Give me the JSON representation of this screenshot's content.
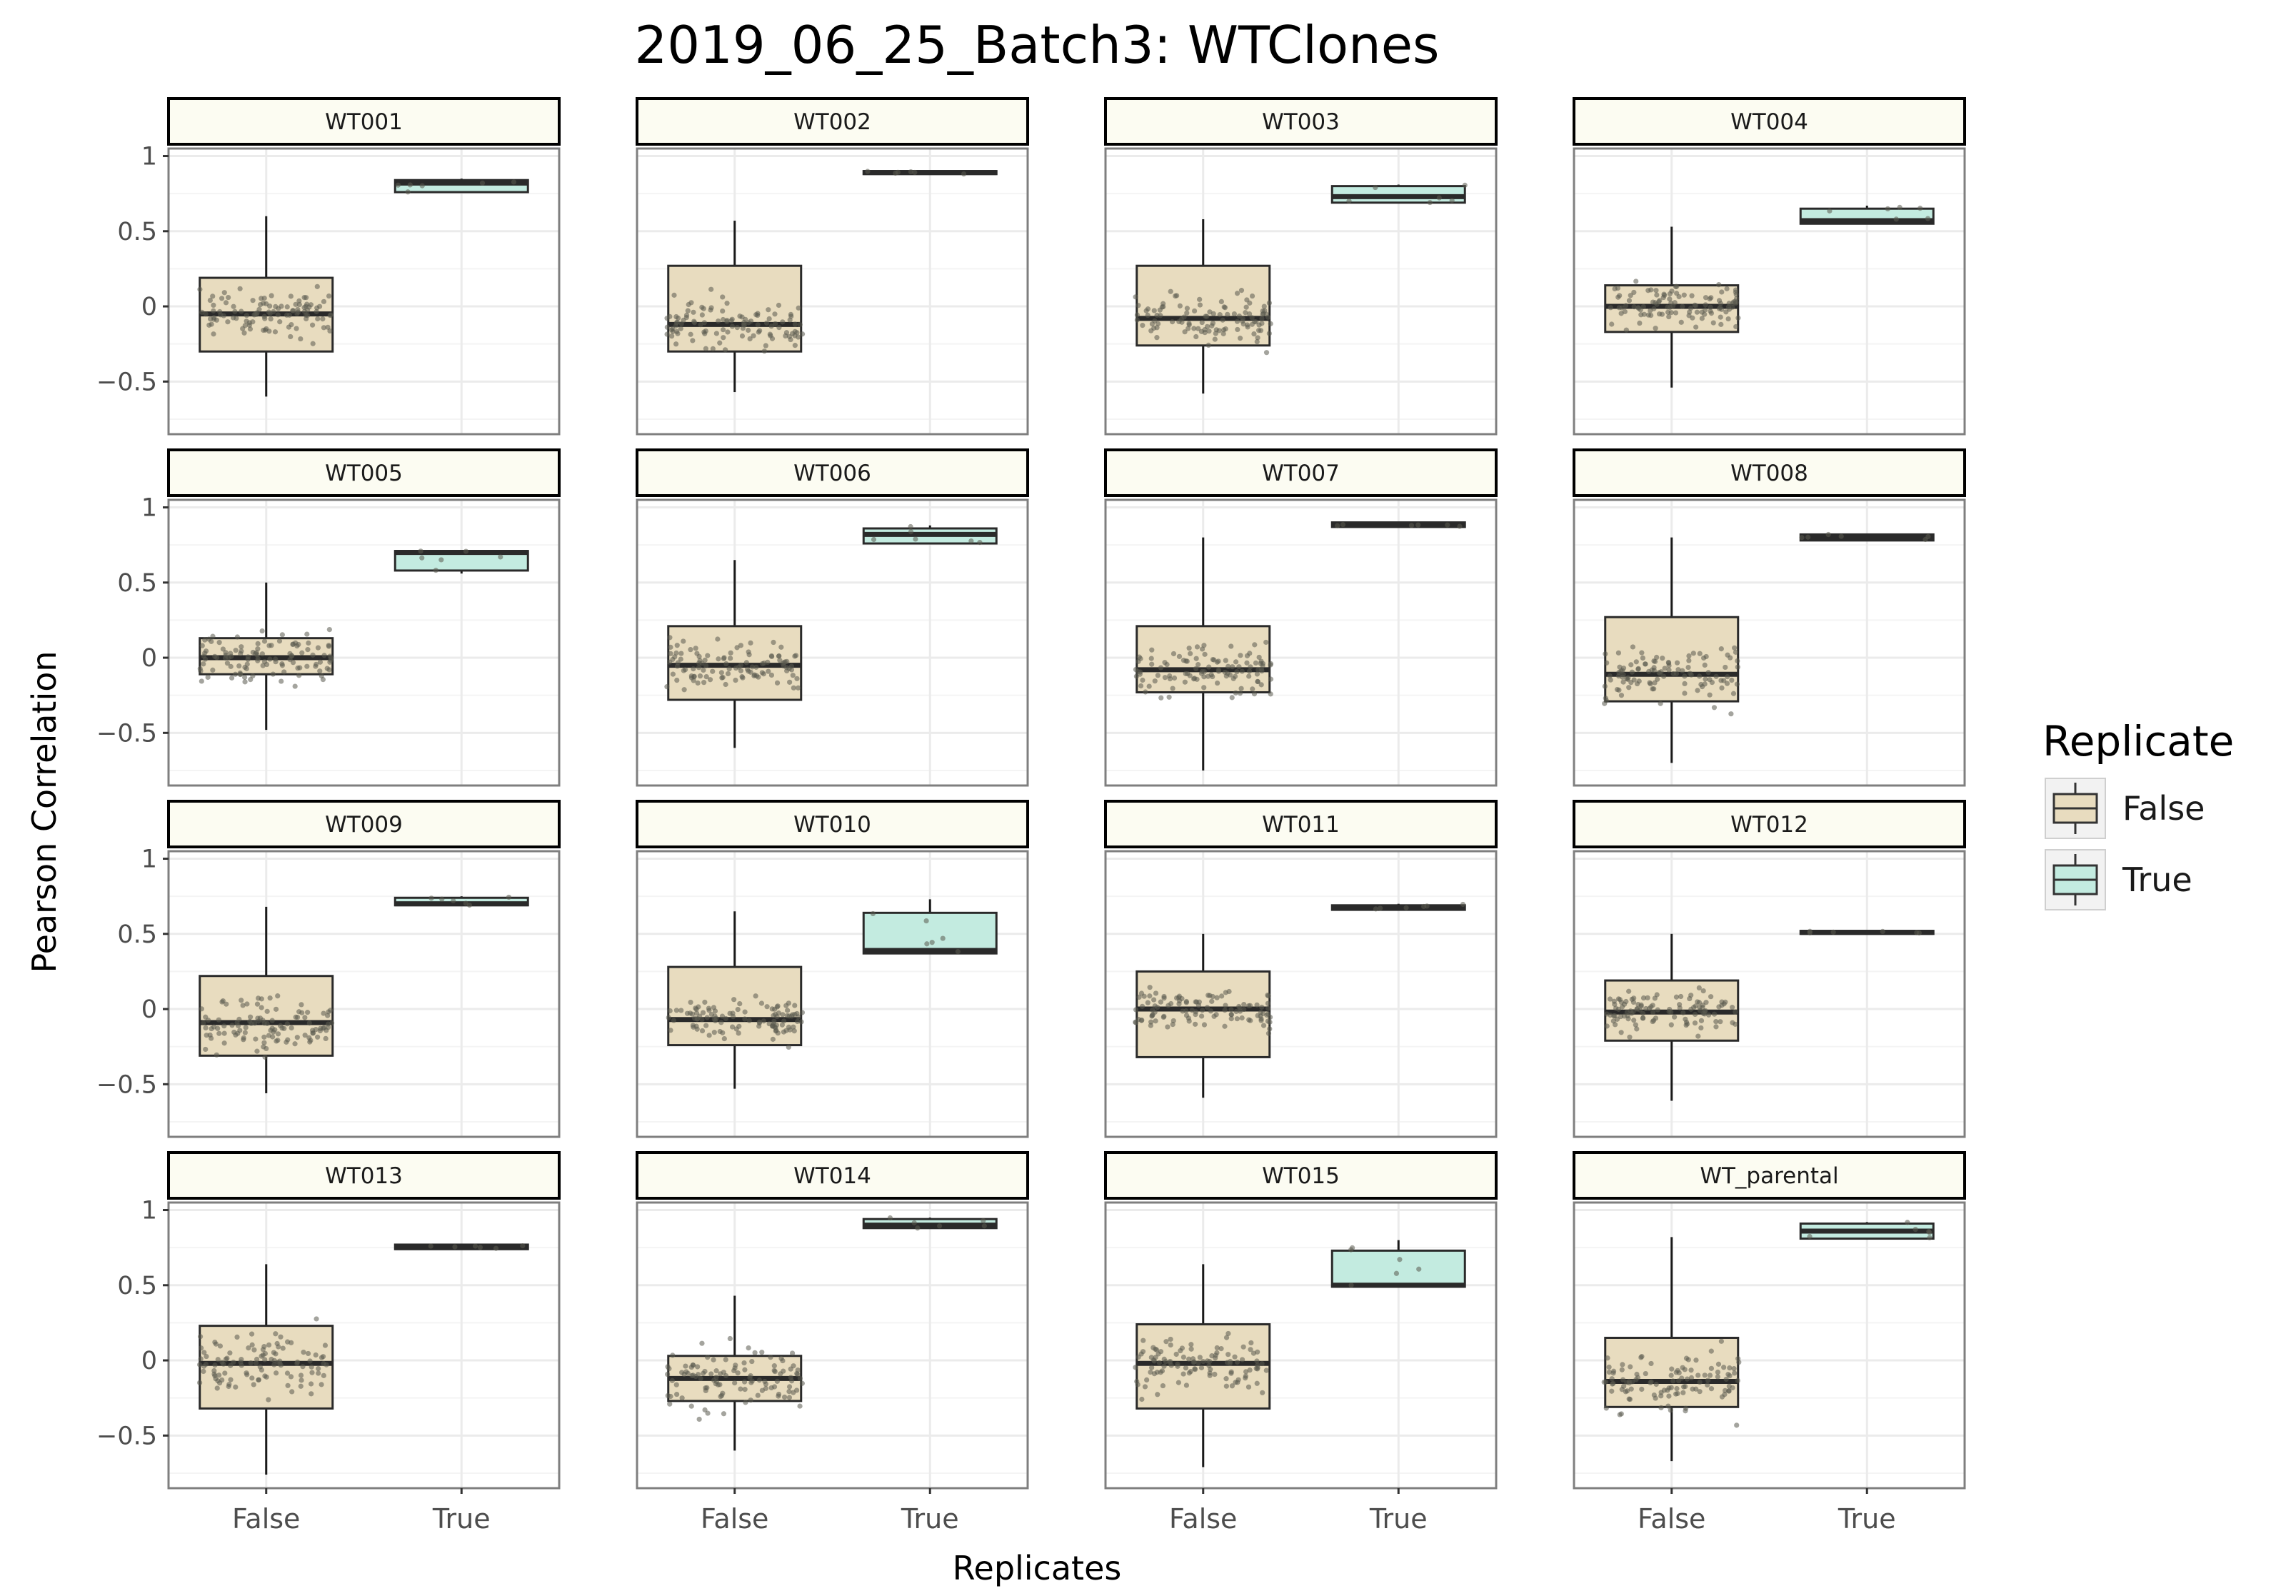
{
  "chart_data": {
    "type": "box",
    "title": "2019_06_25_Batch3: WTClones",
    "xlabel": "Replicates",
    "ylabel": "Pearson Correlation",
    "categories": [
      "False",
      "True"
    ],
    "ylim": [
      -0.85,
      1.05
    ],
    "yticks": [
      1,
      0.5,
      0,
      -0.5
    ],
    "ytick_labels": [
      "1",
      "0.5",
      "0",
      "−0.5"
    ],
    "grid": true,
    "legend": {
      "title": "Replicate",
      "position": "right",
      "entries": [
        {
          "label": "False",
          "color": "#e8dcbf"
        },
        {
          "label": "True",
          "color": "#c3ebe0"
        }
      ]
    },
    "colors": {
      "false_fill": "#e8dcbf",
      "true_fill": "#c3ebe0",
      "strip_fill": "#fcfcf2",
      "point": "#5a5a4e",
      "grid": "#ebebeb",
      "frame": "#7f7f7f"
    },
    "panels": [
      {
        "label": "WT001",
        "false": {
          "min": -0.6,
          "q1": -0.3,
          "median": -0.05,
          "q3": 0.19,
          "max": 0.6,
          "spread": 0.6
        },
        "true": {
          "min": 0.76,
          "q1": 0.76,
          "median": 0.82,
          "q3": 0.84,
          "max": 0.85
        }
      },
      {
        "label": "WT002",
        "false": {
          "min": -0.57,
          "q1": -0.3,
          "median": -0.12,
          "q3": 0.27,
          "max": 0.57,
          "spread": 0.6
        },
        "true": {
          "min": 0.88,
          "q1": 0.88,
          "median": 0.89,
          "q3": 0.9,
          "max": 0.9
        }
      },
      {
        "label": "WT003",
        "false": {
          "min": -0.58,
          "q1": -0.26,
          "median": -0.08,
          "q3": 0.27,
          "max": 0.58,
          "spread": 0.6
        },
        "true": {
          "min": 0.69,
          "q1": 0.69,
          "median": 0.73,
          "q3": 0.8,
          "max": 0.81
        }
      },
      {
        "label": "WT004",
        "false": {
          "min": -0.54,
          "q1": -0.17,
          "median": 0.0,
          "q3": 0.14,
          "max": 0.53,
          "spread": 0.55
        },
        "true": {
          "min": 0.55,
          "q1": 0.55,
          "median": 0.57,
          "q3": 0.65,
          "max": 0.67
        }
      },
      {
        "label": "WT005",
        "false": {
          "min": -0.48,
          "q1": -0.11,
          "median": 0.0,
          "q3": 0.13,
          "max": 0.5,
          "spread": 0.6
        },
        "true": {
          "min": 0.56,
          "q1": 0.58,
          "median": 0.7,
          "q3": 0.71,
          "max": 0.71
        }
      },
      {
        "label": "WT006",
        "false": {
          "min": -0.6,
          "q1": -0.28,
          "median": -0.05,
          "q3": 0.21,
          "max": 0.65,
          "spread": 0.6
        },
        "true": {
          "min": 0.76,
          "q1": 0.76,
          "median": 0.82,
          "q3": 0.86,
          "max": 0.88
        }
      },
      {
        "label": "WT007",
        "false": {
          "min": -0.75,
          "q1": -0.23,
          "median": -0.08,
          "q3": 0.21,
          "max": 0.8,
          "spread": 0.75
        },
        "true": {
          "min": 0.87,
          "q1": 0.87,
          "median": 0.88,
          "q3": 0.9,
          "max": 0.9
        }
      },
      {
        "label": "WT008",
        "false": {
          "min": -0.7,
          "q1": -0.29,
          "median": -0.11,
          "q3": 0.27,
          "max": 0.8,
          "spread": 0.7
        },
        "true": {
          "min": 0.78,
          "q1": 0.78,
          "median": 0.8,
          "q3": 0.82,
          "max": 0.82
        }
      },
      {
        "label": "WT009",
        "false": {
          "min": -0.56,
          "q1": -0.31,
          "median": -0.09,
          "q3": 0.22,
          "max": 0.68,
          "spread": 0.65
        },
        "true": {
          "min": 0.69,
          "q1": 0.69,
          "median": 0.7,
          "q3": 0.74,
          "max": 0.75
        }
      },
      {
        "label": "WT010",
        "false": {
          "min": -0.53,
          "q1": -0.24,
          "median": -0.07,
          "q3": 0.28,
          "max": 0.65,
          "spread": 0.6
        },
        "true": {
          "min": 0.37,
          "q1": 0.37,
          "median": 0.39,
          "q3": 0.64,
          "max": 0.73
        }
      },
      {
        "label": "WT011",
        "false": {
          "min": -0.59,
          "q1": -0.32,
          "median": 0.0,
          "q3": 0.25,
          "max": 0.5,
          "spread": 0.55
        },
        "true": {
          "min": 0.66,
          "q1": 0.66,
          "median": 0.67,
          "q3": 0.69,
          "max": 0.7
        }
      },
      {
        "label": "WT012",
        "false": {
          "min": -0.61,
          "q1": -0.21,
          "median": -0.02,
          "q3": 0.19,
          "max": 0.5,
          "spread": 0.55
        },
        "true": {
          "min": 0.5,
          "q1": 0.5,
          "median": 0.51,
          "q3": 0.52,
          "max": 0.52
        }
      },
      {
        "label": "WT013",
        "false": {
          "min": -0.76,
          "q1": -0.32,
          "median": -0.02,
          "q3": 0.23,
          "max": 0.64,
          "spread": 0.75
        },
        "true": {
          "min": 0.74,
          "q1": 0.74,
          "median": 0.75,
          "q3": 0.77,
          "max": 0.77
        }
      },
      {
        "label": "WT014",
        "false": {
          "min": -0.6,
          "q1": -0.27,
          "median": -0.12,
          "q3": 0.03,
          "max": 0.43,
          "spread": 0.8
        },
        "true": {
          "min": 0.88,
          "q1": 0.88,
          "median": 0.9,
          "q3": 0.94,
          "max": 0.95
        }
      },
      {
        "label": "WT015",
        "false": {
          "min": -0.71,
          "q1": -0.32,
          "median": -0.02,
          "q3": 0.24,
          "max": 0.64,
          "spread": 0.7
        },
        "true": {
          "min": 0.49,
          "q1": 0.49,
          "median": 0.5,
          "q3": 0.73,
          "max": 0.8
        }
      },
      {
        "label": "WT_parental",
        "false": {
          "min": -0.67,
          "q1": -0.31,
          "median": -0.14,
          "q3": 0.15,
          "max": 0.82,
          "spread": 0.8
        },
        "true": {
          "min": 0.81,
          "q1": 0.81,
          "median": 0.86,
          "q3": 0.91,
          "max": 0.92
        }
      }
    ]
  }
}
